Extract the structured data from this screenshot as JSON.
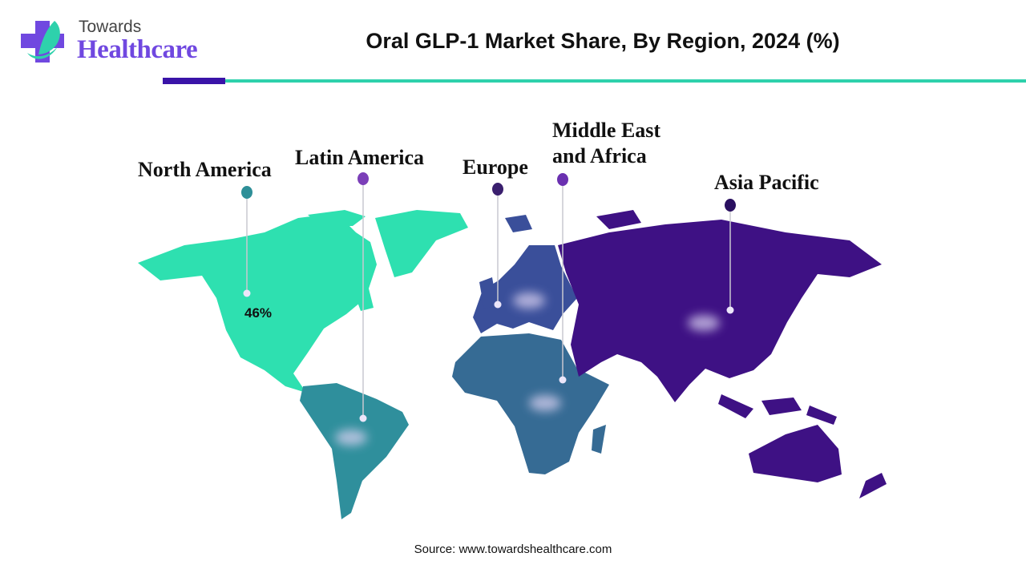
{
  "logo": {
    "line1": "Towards",
    "line2": "Healthcare"
  },
  "title": "Oral GLP-1 Market Share, By Region, 2024 (%)",
  "source": "Source: www.towardshealthcare.com",
  "colors": {
    "accent_purple": "#3a13a8",
    "accent_teal": "#2ed1ac"
  },
  "regions": [
    {
      "name": "North America",
      "value": "46%",
      "color": "#2ee0b0",
      "pin_color": "#2e8f98"
    },
    {
      "name": "Latin America",
      "value": null,
      "color": "#2f8f9c",
      "pin_color": "#7b3fb8"
    },
    {
      "name": "Europe",
      "value": null,
      "color": "#3a4f9a",
      "pin_color": "#3a1f6e"
    },
    {
      "name": "Middle East and Africa",
      "name_line1": "Middle East",
      "name_line2": "and Africa",
      "value": null,
      "color": "#366b94",
      "pin_color": "#6a30b0"
    },
    {
      "name": "Asia Pacific",
      "value": null,
      "color": "#3e1184",
      "pin_color": "#2a1060"
    }
  ]
}
